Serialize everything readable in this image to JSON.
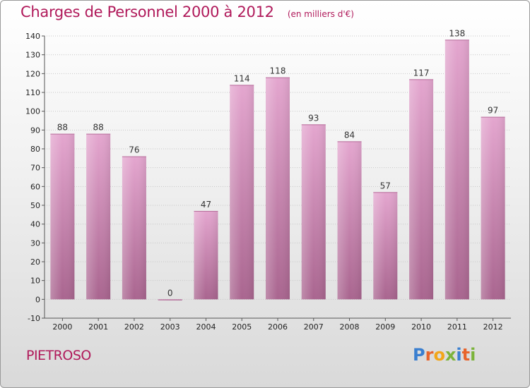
{
  "title": "Charges de Personnel 2000 à 2012",
  "subtitle": "(en milliers d'€)",
  "place": "PIETROSO",
  "logo": {
    "letters": [
      "P",
      "r",
      "o",
      "x",
      "i",
      "t",
      "i"
    ],
    "colors": [
      "#3a7fd0",
      "#e8642c",
      "#f2a619",
      "#7bb33a",
      "#3a7fd0",
      "#e8642c",
      "#7bb33a"
    ]
  },
  "colors": {
    "bar": "#d48cbb",
    "accent": "#b0195a"
  },
  "chart_data": {
    "type": "bar",
    "categories": [
      "2000",
      "2001",
      "2002",
      "2003",
      "2004",
      "2005",
      "2006",
      "2007",
      "2008",
      "2009",
      "2010",
      "2011",
      "2012"
    ],
    "values": [
      88,
      88,
      76,
      0,
      47,
      114,
      118,
      93,
      84,
      57,
      117,
      138,
      97
    ],
    "title": "Charges de Personnel 2000 à 2012",
    "subtitle": "(en milliers d'€)",
    "xlabel": "",
    "ylabel": "",
    "ylim": [
      -10,
      140
    ],
    "yticks": [
      -10,
      0,
      10,
      20,
      30,
      40,
      50,
      60,
      70,
      80,
      90,
      100,
      110,
      120,
      130,
      140
    ],
    "grid": "horizontal"
  }
}
